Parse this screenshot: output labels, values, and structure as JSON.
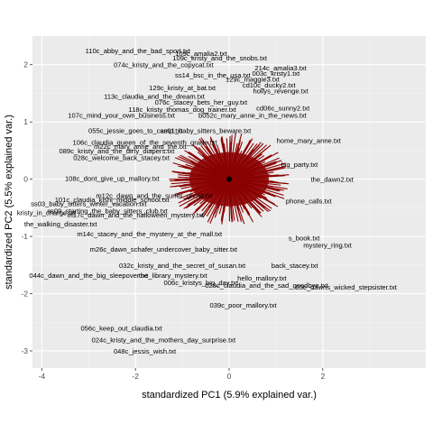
{
  "chart_data": {
    "type": "scatter",
    "title": "",
    "xlabel": "standardized PC1 (5.9% explained var.)",
    "ylabel": "standardized PC2 (5.5% explained var.)",
    "xlim": [
      -4.2,
      4.2
    ],
    "ylim": [
      -3.3,
      2.5
    ],
    "x_ticks": [
      -4,
      -2,
      0,
      2
    ],
    "y_ticks": [
      -3,
      -2,
      -1,
      0,
      1,
      2
    ],
    "grid": true,
    "background": "#ebebeb",
    "center_point": {
      "x": 0.0,
      "y": 0.0
    },
    "arrow_color": "#8b0000",
    "point_color": "#000000",
    "labels": [
      {
        "text": "110c_abby_and_the_bad_sport.txt",
        "x": -1.95,
        "y": 2.25
      },
      {
        "text": "109c_amalia2.txt",
        "x": -0.6,
        "y": 2.2
      },
      {
        "text": "109c_kristy_and_the_snobs.txt",
        "x": -0.2,
        "y": 2.12
      },
      {
        "text": "074c_kristy_and_the_copycat.txt",
        "x": -1.4,
        "y": 2.0
      },
      {
        "text": "ss14_bsc_in_the_usa.txt",
        "x": -0.35,
        "y": 1.82
      },
      {
        "text": "214c_amalia3.txt",
        "x": 1.1,
        "y": 1.95
      },
      {
        "text": "003c_kristy1.txt",
        "x": 1.0,
        "y": 1.85
      },
      {
        "text": "129c_maggie3.txt",
        "x": 0.5,
        "y": 1.75
      },
      {
        "text": "cd10c_ducky2.txt",
        "x": 0.85,
        "y": 1.65
      },
      {
        "text": "129c_kristy_at_bat.txt",
        "x": -1.0,
        "y": 1.6
      },
      {
        "text": "hollys_revenge.txt",
        "x": 1.1,
        "y": 1.55
      },
      {
        "text": "113c_claudia_and_the_dream.txt",
        "x": -1.6,
        "y": 1.45
      },
      {
        "text": "076c_stacey_bets_her_guy.txt",
        "x": -0.6,
        "y": 1.35
      },
      {
        "text": "118c_kristy_thomas_dog_trainer.txt",
        "x": -1.0,
        "y": 1.22
      },
      {
        "text": "cd06c_sunny2.txt",
        "x": 1.15,
        "y": 1.25
      },
      {
        "text": "107c_mind_your_own_business.txt",
        "x": -2.3,
        "y": 1.12
      },
      {
        "text": "b052c_mary_anne_in_the_news.txt",
        "x": 0.5,
        "y": 1.12
      },
      {
        "text": "055c_jessie_goes_to_camp.txt",
        "x": -2.0,
        "y": 0.85
      },
      {
        "text": "ss01_baby_sitters_beware.txt",
        "x": -0.5,
        "y": 0.85
      },
      {
        "text": "m22c_mary_anne_and_the.txt",
        "x": -1.9,
        "y": 0.58
      },
      {
        "text": "089c_kristy_and_the_dirty_diapers.txt",
        "x": -2.4,
        "y": 0.5
      },
      {
        "text": "028c_welcome_back_stacey.txt",
        "x": -2.3,
        "y": 0.38
      },
      {
        "text": "home_mary_anne.txt",
        "x": 1.7,
        "y": 0.68
      },
      {
        "text": "106c_claudia_queen_of_the_seventh_grade.txt",
        "x": -1.8,
        "y": 0.65
      },
      {
        "text": "big_party.txt",
        "x": 1.5,
        "y": 0.26
      },
      {
        "text": "108c_dont_give_up_mallory.txt",
        "x": -2.5,
        "y": 0.02
      },
      {
        "text": "m12c_dawn_and_the_surfer_ghost.txt",
        "x": -1.6,
        "y": -0.28
      },
      {
        "text": "the_dawn2.txt",
        "x": 2.2,
        "y": 0.0
      },
      {
        "text": "ss03_baby_sitters_winter_vacation.txt",
        "x": -3.0,
        "y": -0.42
      },
      {
        "text": "101c_claudia_kishi_middle_school.txt",
        "x": -2.5,
        "y": -0.35
      },
      {
        "text": "phone_calls.txt",
        "x": 1.7,
        "y": -0.38
      },
      {
        "text": "kristy_in_charge.txt",
        "x": -3.9,
        "y": -0.58
      },
      {
        "text": "ss09_starting_the_baby_sitters_club.txt",
        "x": -2.6,
        "y": -0.55
      },
      {
        "text": "m17c_dawn_and_the_halloween_mystery.txt",
        "x": -2.0,
        "y": -0.62
      },
      {
        "text": "the_walking_disaster.txt",
        "x": -3.6,
        "y": -0.78
      },
      {
        "text": "m14c_stacey_and_the_mystery_at_the_mall.txt",
        "x": -1.7,
        "y": -0.95
      },
      {
        "text": "s_book.txt",
        "x": 1.6,
        "y": -1.02
      },
      {
        "text": "m26c_dawn_schafer_undercover_baby_sitter.txt",
        "x": -1.4,
        "y": -1.22
      },
      {
        "text": "mystery_ring.txt",
        "x": 2.1,
        "y": -1.15
      },
      {
        "text": "032c_kristy_and_the_secret_of_susan.txt",
        "x": -1.0,
        "y": -1.5
      },
      {
        "text": "back_stacey.txt",
        "x": 1.4,
        "y": -1.5
      },
      {
        "text": "044c_dawn_and_the_big_sleepover.txt",
        "x": -3.0,
        "y": -1.68
      },
      {
        "text": "the_library_mystery.txt",
        "x": -1.2,
        "y": -1.68
      },
      {
        "text": "hello_mallory.txt",
        "x": 0.7,
        "y": -1.72
      },
      {
        "text": "006c_kristys_big_day.txt",
        "x": -0.6,
        "y": -1.8
      },
      {
        "text": "028c_claudia_and_the_sad_goodbye.txt",
        "x": 0.8,
        "y": -1.85
      },
      {
        "text": "03c_dawns_wicked_stepsister.txt",
        "x": 2.5,
        "y": -1.88
      },
      {
        "text": "039c_poor_mallory.txt",
        "x": 0.3,
        "y": -2.2
      },
      {
        "text": "056c_keep_out_claudia.txt",
        "x": -2.3,
        "y": -2.6
      },
      {
        "text": "024c_kristy_and_the_mothers_day_surprise.txt",
        "x": -1.4,
        "y": -2.8
      },
      {
        "text": "048c_jessis_wish.txt",
        "x": -1.8,
        "y": -3.0
      }
    ]
  }
}
